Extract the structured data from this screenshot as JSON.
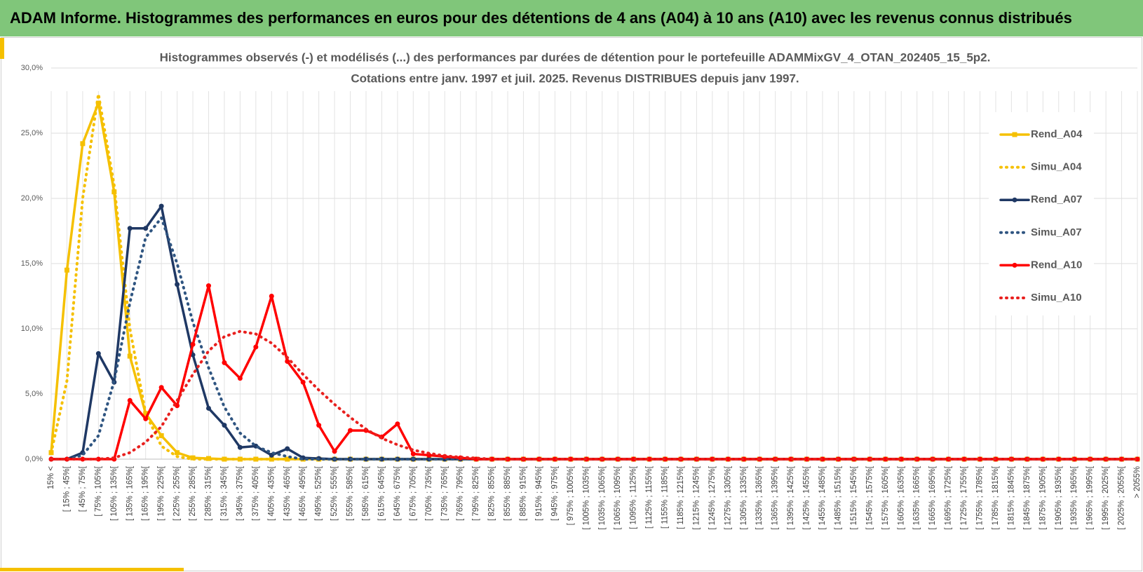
{
  "header": {
    "title": "ADAM Informe. Histogrammes des performances en euros pour des détentions de 4 ans (A04) à 10 ans (A10) avec les revenus connus distribués"
  },
  "chart_data": {
    "type": "line",
    "title": "Histogrammes observés (-) et modélisés (...) des performances par durées de détention pour le portefeuille ADAMMixGV_4_OTAN_202405_15_5p2.",
    "subtitle": "Cotations entre janv. 1997 et juil. 2025. Revenus DISTRIBUES depuis janv 1997.",
    "categories": [
      "15% <",
      "[ 15% ; 45%[",
      "[ 45% ; 75%[",
      "[ 75% ; 105%[",
      "[ 105% ; 135%[",
      "[ 135% ; 165%[",
      "[ 165% ; 195%[",
      "[ 195% ; 225%[",
      "[ 225% ; 255%[",
      "[ 255% ; 285%[",
      "[ 285% ; 315%[",
      "[ 315% ; 345%[",
      "[ 345% ; 375%[",
      "[ 375% ; 405%[",
      "[ 405% ; 435%[",
      "[ 435% ; 465%[",
      "[ 465% ; 495%[",
      "[ 495% ; 525%[",
      "[ 525% ; 555%[",
      "[ 555% ; 585%[",
      "[ 585% ; 615%[",
      "[ 615% ; 645%[",
      "[ 645% ; 675%[",
      "[ 675% ; 705%[",
      "[ 705% ; 735%[",
      "[ 735% ; 765%[",
      "[ 765% ; 795%[",
      "[ 795% ; 825%[",
      "[ 825% ; 855%[",
      "[ 855% ; 885%[",
      "[ 885% ; 915%[",
      "[ 915% ; 945%[",
      "[ 945% ; 975%[",
      "[ 975% ; 1005%[",
      "[ 1005% ; 1035%[",
      "[ 1035% ; 1065%[",
      "[ 1065% ; 1095%[",
      "[ 1095% ; 1125%[",
      "[ 1125% ; 1155%[",
      "[ 1155% ; 1185%[",
      "[ 1185% ; 1215%[",
      "[ 1215% ; 1245%[",
      "[ 1245% ; 1275%[",
      "[ 1275% ; 1305%[",
      "[ 1305% ; 1335%[",
      "[ 1335% ; 1365%[",
      "[ 1365% ; 1395%[",
      "[ 1395% ; 1425%[",
      "[ 1425% ; 1455%[",
      "[ 1455% ; 1485%[",
      "[ 1485% ; 1515%[",
      "[ 1515% ; 1545%[",
      "[ 1545% ; 1575%[",
      "[ 1575% ; 1605%[",
      "[ 1605% ; 1635%[",
      "[ 1635% ; 1665%[",
      "[ 1665% ; 1695%[",
      "[ 1695% ; 1725%[",
      "[ 1725% ; 1755%[",
      "[ 1755% ; 1785%[",
      "[ 1785% ; 1815%[",
      "[ 1815% ; 1845%[",
      "[ 1845% ; 1875%[",
      "[ 1875% ; 1905%[",
      "[ 1905% ; 1935%[",
      "[ 1935% ; 1965%[",
      "[ 1965% ; 1995%[",
      "[ 1995% ; 2025%[",
      "[ 2025% ; 2055%[",
      "> 2055%"
    ],
    "series": [
      {
        "name": "Rend_A04",
        "color": "#f5c000",
        "marker": "square",
        "dashed": false,
        "values": [
          0.5,
          14.5,
          24.2,
          27.3,
          20.5,
          7.9,
          3.5,
          1.8,
          0.5,
          0.1,
          0.05,
          0,
          0,
          0,
          0,
          0,
          0,
          0,
          0,
          0,
          0,
          0,
          0,
          0,
          0,
          0,
          0,
          0,
          0,
          0,
          0,
          0,
          0,
          0,
          0,
          0,
          0,
          0,
          0,
          0,
          0,
          0,
          0,
          0,
          0,
          0,
          0,
          0,
          0,
          0,
          0,
          0,
          0,
          0,
          0,
          0,
          0,
          0,
          0,
          0,
          0,
          0,
          0,
          0,
          0,
          0,
          0,
          0,
          0,
          0
        ]
      },
      {
        "name": "Simu_A04",
        "color": "#f5c000",
        "dashed": true,
        "values": [
          0.5,
          6,
          20,
          28,
          21,
          10,
          3.5,
          1,
          0.2,
          0,
          0,
          0,
          0,
          0,
          0,
          0,
          0,
          0,
          0,
          0,
          0,
          0,
          0,
          0,
          0,
          0,
          0,
          0,
          0,
          0,
          0,
          0,
          0,
          0,
          0,
          0,
          0,
          0,
          0,
          0,
          0,
          0,
          0,
          0,
          0,
          0,
          0,
          0,
          0,
          0,
          0,
          0,
          0,
          0,
          0,
          0,
          0,
          0,
          0,
          0,
          0,
          0,
          0,
          0,
          0,
          0,
          0,
          0,
          0,
          0
        ]
      },
      {
        "name": "Rend_A07",
        "color": "#1f3864",
        "marker": "circle",
        "dashed": false,
        "values": [
          0,
          0,
          0.5,
          8.1,
          5.9,
          17.7,
          17.7,
          19.4,
          13.4,
          8.0,
          3.9,
          2.6,
          0.9,
          1.0,
          0.3,
          0.8,
          0.1,
          0.05,
          0,
          0,
          0,
          0,
          0,
          0,
          0,
          0,
          0,
          0,
          0,
          0,
          0,
          0,
          0,
          0,
          0,
          0,
          0,
          0,
          0,
          0,
          0,
          0,
          0,
          0,
          0,
          0,
          0,
          0,
          0,
          0,
          0,
          0,
          0,
          0,
          0,
          0,
          0,
          0,
          0,
          0,
          0,
          0,
          0,
          0,
          0,
          0,
          0,
          0,
          0,
          0
        ]
      },
      {
        "name": "Simu_A07",
        "color": "#2f5581",
        "dashed": true,
        "values": [
          0,
          0,
          0.3,
          1.8,
          6,
          12,
          17,
          18.5,
          15,
          10.5,
          7,
          4,
          2,
          1,
          0.5,
          0.2,
          0,
          0,
          0,
          0,
          0,
          0,
          0,
          0,
          0,
          0,
          0,
          0,
          0,
          0,
          0,
          0,
          0,
          0,
          0,
          0,
          0,
          0,
          0,
          0,
          0,
          0,
          0,
          0,
          0,
          0,
          0,
          0,
          0,
          0,
          0,
          0,
          0,
          0,
          0,
          0,
          0,
          0,
          0,
          0,
          0,
          0,
          0,
          0,
          0,
          0,
          0,
          0,
          0,
          0
        ]
      },
      {
        "name": "Rend_A10",
        "color": "#ff0000",
        "marker": "circle",
        "dashed": false,
        "values": [
          0,
          0,
          0,
          0,
          0,
          4.5,
          3.1,
          5.5,
          4.1,
          8.8,
          13.3,
          7.4,
          6.2,
          8.6,
          12.5,
          7.5,
          5.9,
          2.6,
          0.6,
          2.2,
          2.2,
          1.7,
          2.7,
          0.4,
          0.3,
          0.2,
          0.1,
          0,
          0,
          0,
          0,
          0,
          0,
          0,
          0,
          0,
          0,
          0,
          0,
          0,
          0,
          0,
          0,
          0,
          0,
          0,
          0,
          0,
          0,
          0,
          0,
          0,
          0,
          0,
          0,
          0,
          0,
          0,
          0,
          0,
          0,
          0,
          0,
          0,
          0,
          0,
          0,
          0,
          0,
          0
        ]
      },
      {
        "name": "Simu_A10",
        "color": "#e8201e",
        "dashed": true,
        "values": [
          0,
          0,
          0,
          0,
          0.1,
          0.5,
          1.3,
          2.5,
          4.5,
          6.5,
          8.3,
          9.4,
          9.8,
          9.6,
          8.9,
          7.8,
          6.5,
          5.3,
          4.2,
          3.2,
          2.3,
          1.6,
          1.1,
          0.7,
          0.45,
          0.25,
          0.15,
          0.08,
          0,
          0,
          0,
          0,
          0,
          0,
          0,
          0,
          0,
          0,
          0,
          0,
          0,
          0,
          0,
          0,
          0,
          0,
          0,
          0,
          0,
          0,
          0,
          0,
          0,
          0,
          0,
          0,
          0,
          0,
          0,
          0,
          0,
          0,
          0,
          0,
          0,
          0,
          0,
          0,
          0,
          0
        ]
      }
    ],
    "ylim": [
      0,
      30
    ],
    "yticks": [
      {
        "value": 0,
        "label": "0,0%"
      },
      {
        "value": 5,
        "label": "5,0%"
      },
      {
        "value": 10,
        "label": "10,0%"
      },
      {
        "value": 15,
        "label": "15,0%"
      },
      {
        "value": 20,
        "label": "20,0%"
      },
      {
        "value": 25,
        "label": "25,0%"
      },
      {
        "value": 30,
        "label": "30,0%"
      }
    ],
    "grid": true,
    "legend": "right"
  }
}
